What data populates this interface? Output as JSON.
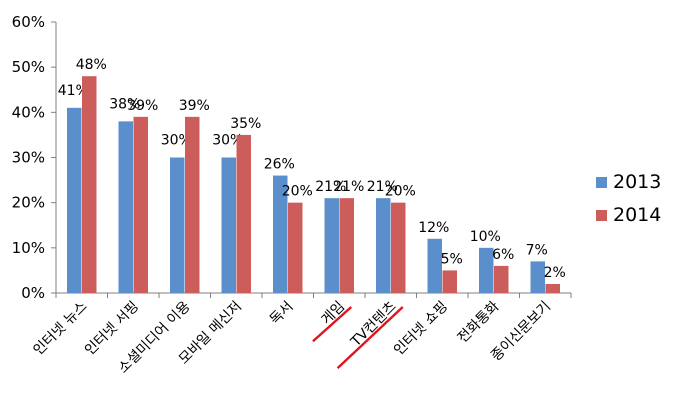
{
  "chart_data": {
    "type": "bar",
    "categories": [
      "인터넷 뉴스",
      "인터넷 서핑",
      "소셜미디어 이용",
      "모바일 메신저",
      "독서",
      "게임",
      "TV컨텐츠",
      "인터넷 쇼핑",
      "전화통화",
      "종이신문보기"
    ],
    "series": [
      {
        "name": "2013",
        "values": [
          41,
          38,
          30,
          30,
          26,
          21,
          21,
          12,
          10,
          7
        ],
        "labels": [
          "41%",
          "38%",
          "30%",
          "30%",
          "26%",
          "21%",
          "21%",
          "12%",
          "10%",
          "7%"
        ],
        "color": "#5b8fcb"
      },
      {
        "name": "2014",
        "values": [
          48,
          39,
          39,
          35,
          20,
          21,
          20,
          5,
          6,
          2
        ],
        "labels": [
          "48%",
          "39%",
          "39%",
          "35%",
          "20%",
          "21%",
          "20%",
          "5%",
          "6%",
          "2%"
        ],
        "color": "#cd5d5b"
      }
    ],
    "yticks": [
      "0%",
      "10%",
      "20%",
      "30%",
      "40%",
      "50%",
      "60%"
    ],
    "ylim": [
      0,
      60
    ],
    "legend_position": "right",
    "underlined_categories": [
      "게임",
      "TV컨텐츠"
    ],
    "annotation_color": "#e0141e",
    "grid": false
  }
}
